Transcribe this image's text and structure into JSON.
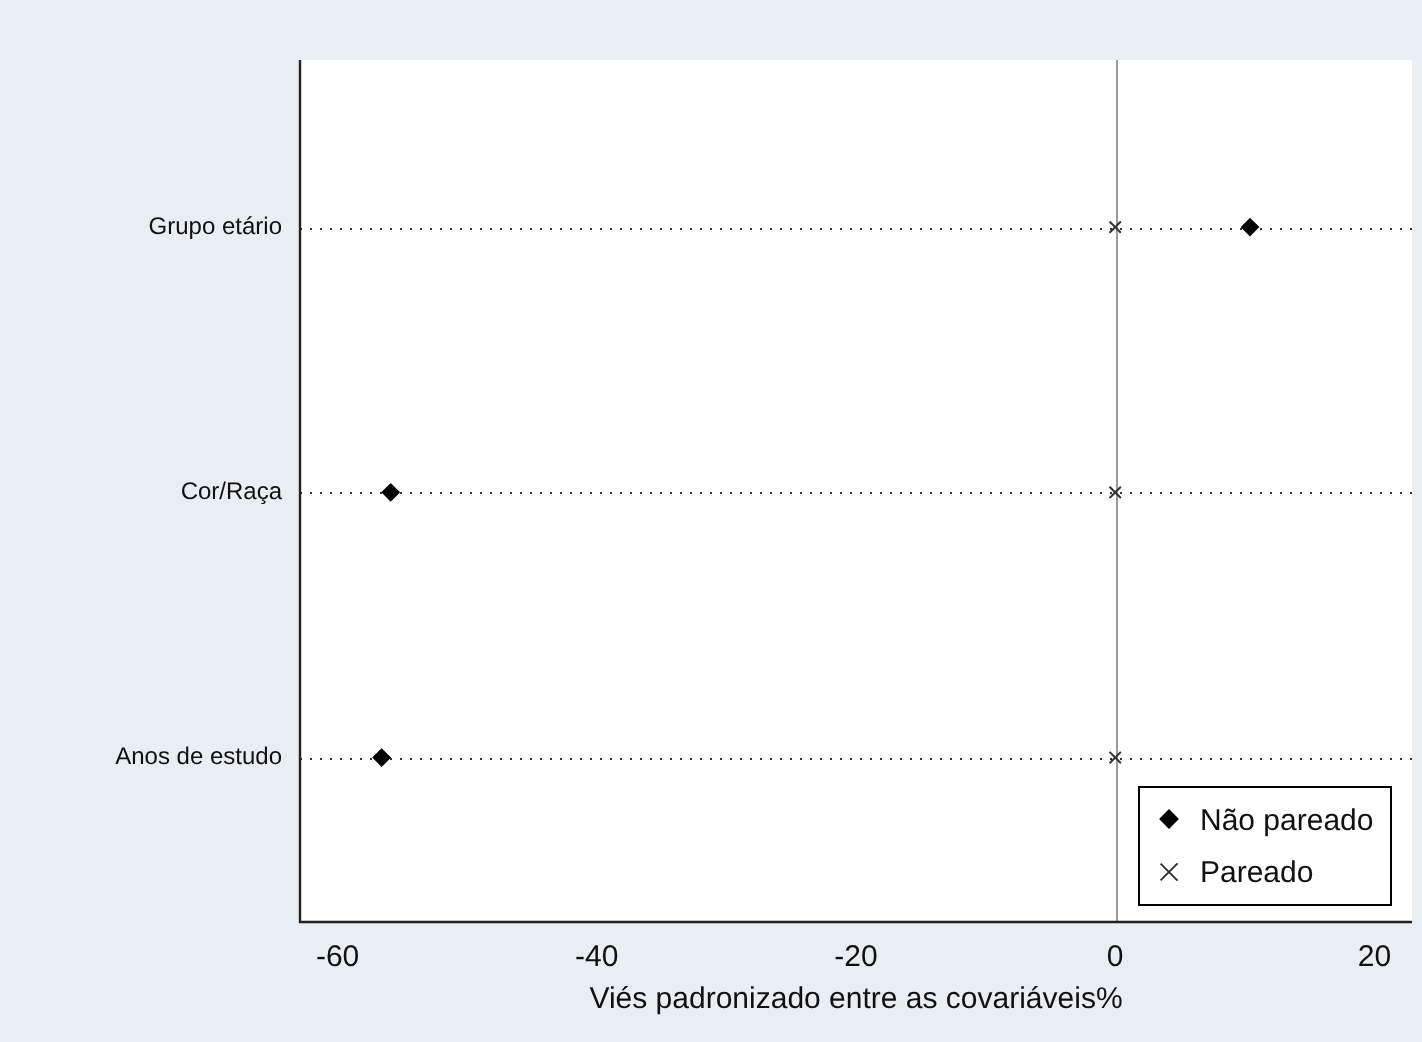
{
  "chart_data": {
    "type": "scatter",
    "xlabel": "Viés padronizado entre as covariáveis%",
    "categories": [
      "Grupo etário",
      "Cor/Raça",
      "Anos de estudo"
    ],
    "series": [
      {
        "name": "Não pareado",
        "color": "#000000",
        "marker": "diamond",
        "values": [
          10.4,
          -55.9,
          -56.6
        ]
      },
      {
        "name": "Pareado",
        "color": "#333333",
        "marker": "cross",
        "values": [
          0,
          0,
          0
        ]
      }
    ],
    "xlim": [
      -62.9,
      22.9
    ],
    "xticks": [
      -60,
      -40,
      -20,
      0,
      20
    ],
    "ref_lines": [
      {
        "axis": "x",
        "value": 0,
        "color": "#999999"
      }
    ],
    "grid": "y",
    "legend": "bottom right",
    "orientation": "horizontal"
  }
}
